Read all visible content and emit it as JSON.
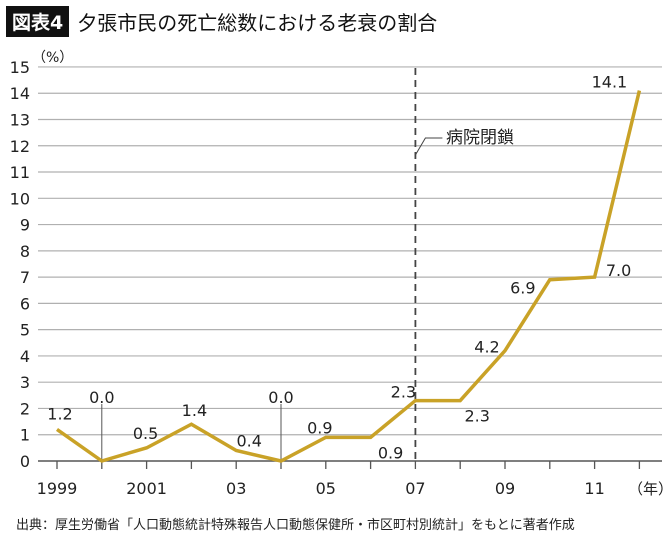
{
  "header": {
    "badge": "図表4",
    "title": "夕張市民の死亡総数における老衰の割合"
  },
  "source": "出典：厚生労働省「人口動態統計特殊報告人口動態保健所・市区町村別統計」をもとに著者作成",
  "chart_data": {
    "type": "line",
    "title": "夕張市民の死亡総数における老衰の割合",
    "ylabel": "（%）",
    "xlabel": "（年）",
    "ylim": [
      0,
      15
    ],
    "yticks": [
      "0",
      "1",
      "2",
      "3",
      "4",
      "5",
      "6",
      "7",
      "8",
      "9",
      "10",
      "11",
      "12",
      "13",
      "14",
      "15"
    ],
    "x": [
      1999,
      2000,
      2001,
      2002,
      2003,
      2004,
      2005,
      2006,
      2007,
      2008,
      2009,
      2010,
      2011,
      2012
    ],
    "xtick_labels": [
      {
        "x": 1999,
        "label": "1999"
      },
      {
        "x": 2001,
        "label": "2001"
      },
      {
        "x": 2003,
        "label": "03"
      },
      {
        "x": 2005,
        "label": "05"
      },
      {
        "x": 2007,
        "label": "07"
      },
      {
        "x": 2009,
        "label": "09"
      },
      {
        "x": 2011,
        "label": "11"
      }
    ],
    "values": [
      1.2,
      0.0,
      0.5,
      1.4,
      0.4,
      0.0,
      0.9,
      0.9,
      2.3,
      2.3,
      4.2,
      6.9,
      7.0,
      14.1
    ],
    "data_labels": [
      "1.2",
      "0.0",
      "0.5",
      "1.4",
      "0.4",
      "0.0",
      "0.9",
      "0.9",
      "2.3",
      "2.3",
      "4.2",
      "6.9",
      "7.0",
      "14.1"
    ],
    "annotation": {
      "x": 2007,
      "label": "病院閉鎖",
      "style": "dashed vertical line"
    },
    "grid": true,
    "line_color": "#C9A227"
  }
}
